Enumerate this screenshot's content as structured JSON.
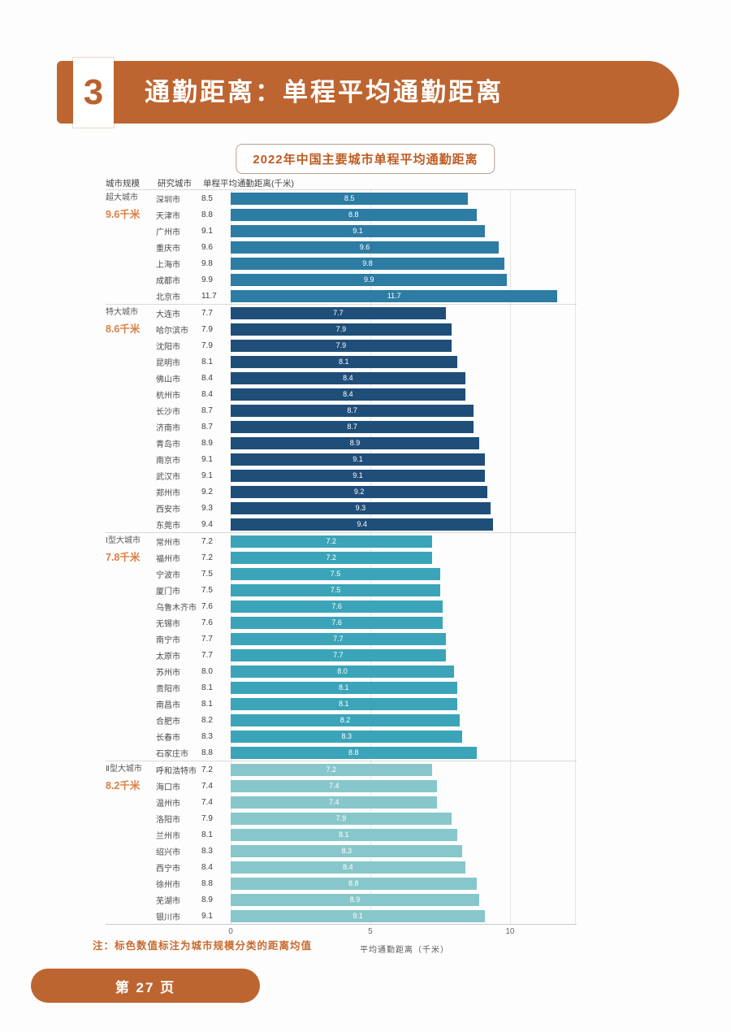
{
  "page": {
    "section_number": "3",
    "title": "通勤距离：单程平均通勤距离",
    "chart_title": "2022年中国主要城市单程平均通勤距离",
    "note": "注：标色数值标注为城市规模分类的距离均值",
    "page_label": "第 27 页"
  },
  "table_header": {
    "col1": "城市规模",
    "col2": "研究城市",
    "col3": "单程平均通勤距离(千米)"
  },
  "axis": {
    "ticks": [
      0,
      5,
      10
    ],
    "label": "平均通勤距离（千米）"
  },
  "colors": {
    "banner_orange": "#bd6531",
    "title_orange": "#bf5b21",
    "average_orange": "#dd7e42",
    "note_orange": "#c96a2e",
    "supercity_bar": "#2d7ca4",
    "megacity_bar": "#1f4e79",
    "type1_bar": "#3ba4b8",
    "type2_bar": "#87c7cb"
  },
  "chart_data": {
    "type": "bar",
    "orientation": "horizontal",
    "title": "2022年中国主要城市单程平均通勤距离",
    "xlabel": "平均通勤距离（千米）",
    "xlim": [
      0,
      12.33
    ],
    "xticks": [
      0,
      5,
      10
    ],
    "grid": true,
    "value_labels": "inside-bar, one decimal",
    "groups": [
      {
        "category": "超大城市",
        "average_label": "9.6千米",
        "color": "#2d7ca4",
        "cities": [
          "深圳市",
          "天津市",
          "广州市",
          "重庆市",
          "上海市",
          "成都市",
          "北京市"
        ],
        "values": [
          8.5,
          8.8,
          9.1,
          9.6,
          9.8,
          9.9,
          11.7
        ]
      },
      {
        "category": "特大城市",
        "average_label": "8.6千米",
        "color": "#1f4e79",
        "cities": [
          "大连市",
          "哈尔滨市",
          "沈阳市",
          "昆明市",
          "佛山市",
          "杭州市",
          "长沙市",
          "济南市",
          "青岛市",
          "南京市",
          "武汉市",
          "郑州市",
          "西安市",
          "东莞市"
        ],
        "values": [
          7.7,
          7.9,
          7.9,
          8.1,
          8.4,
          8.4,
          8.7,
          8.7,
          8.9,
          9.1,
          9.1,
          9.2,
          9.3,
          9.4
        ]
      },
      {
        "category": "Ⅰ型大城市",
        "average_label": "7.8千米",
        "color": "#3ba4b8",
        "cities": [
          "常州市",
          "福州市",
          "宁波市",
          "厦门市",
          "乌鲁木齐市",
          "无锡市",
          "南宁市",
          "太原市",
          "苏州市",
          "贵阳市",
          "南昌市",
          "合肥市",
          "长春市",
          "石家庄市"
        ],
        "values": [
          7.2,
          7.2,
          7.5,
          7.5,
          7.6,
          7.6,
          7.7,
          7.7,
          8.0,
          8.1,
          8.1,
          8.2,
          8.3,
          8.8
        ]
      },
      {
        "category": "Ⅱ型大城市",
        "average_label": "8.2千米",
        "color": "#87c7cb",
        "cities": [
          "呼和浩特市",
          "海口市",
          "温州市",
          "洛阳市",
          "兰州市",
          "绍兴市",
          "西宁市",
          "徐州市",
          "芜湖市",
          "银川市"
        ],
        "values": [
          7.2,
          7.4,
          7.4,
          7.9,
          8.1,
          8.3,
          8.4,
          8.8,
          8.9,
          9.1
        ]
      }
    ]
  }
}
